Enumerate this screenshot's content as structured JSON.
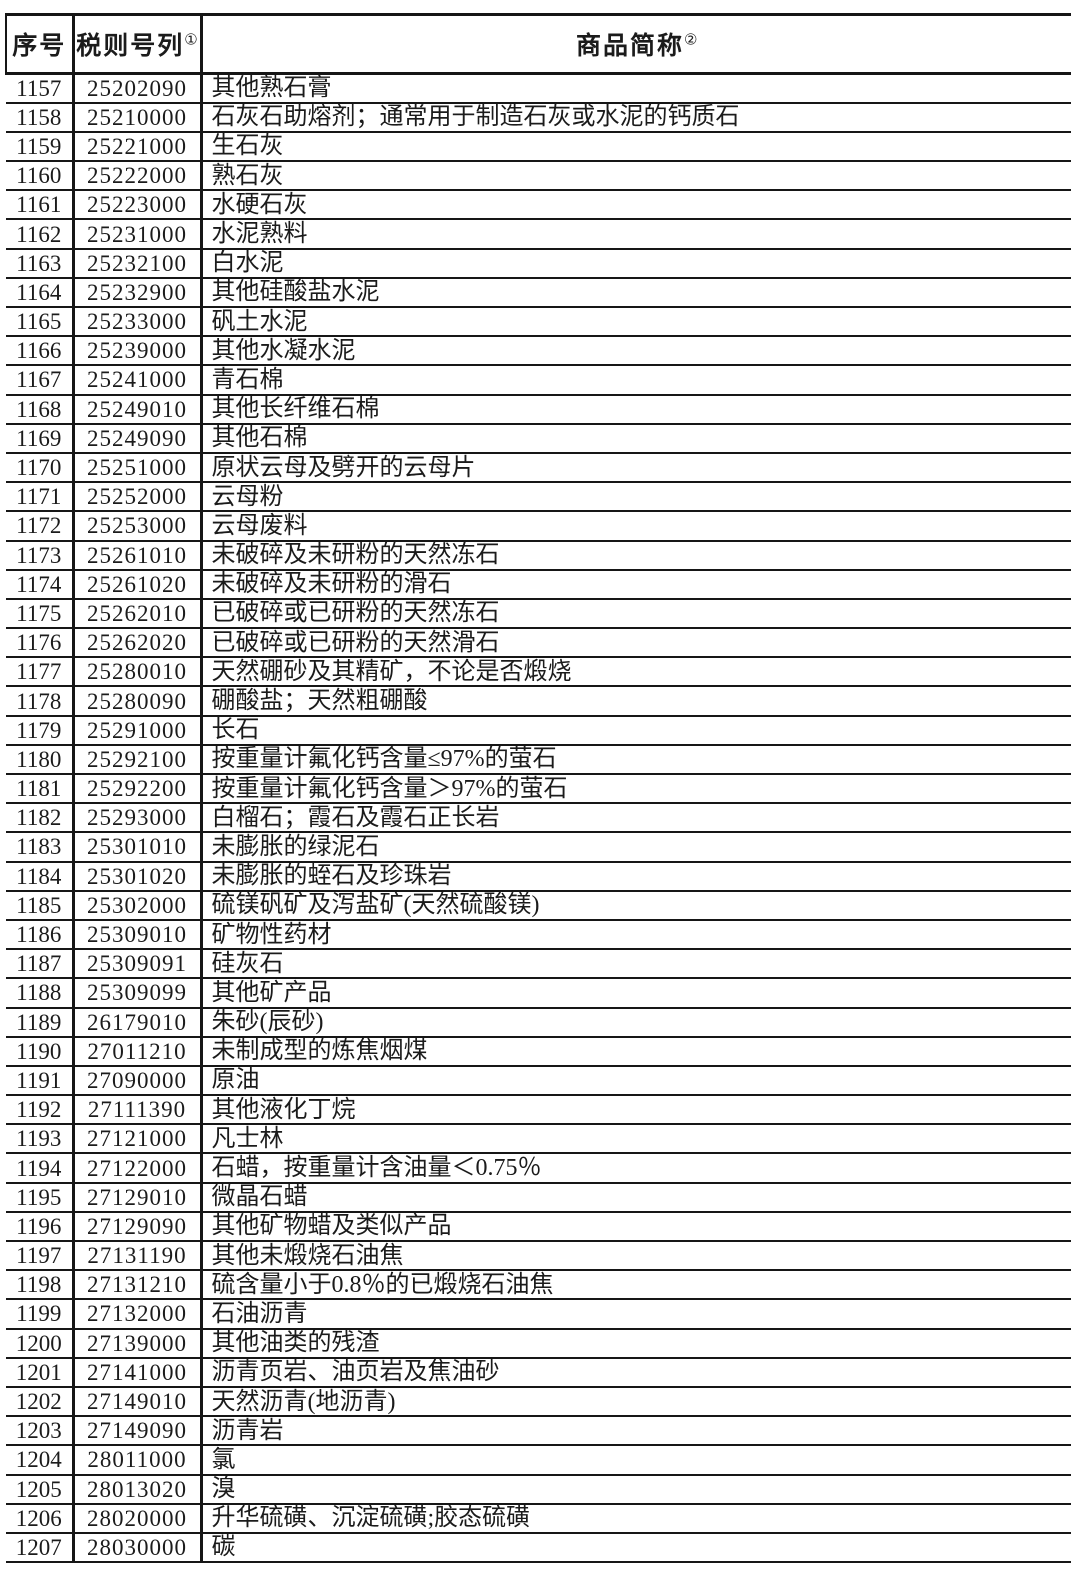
{
  "page": {
    "background": "#ffffff",
    "text_color": "#1b1b1b",
    "line_color": "#161616"
  },
  "table": {
    "headers": [
      {
        "label": "序号",
        "footnote_mark": ""
      },
      {
        "label": "税则号列",
        "footnote_mark": "①"
      },
      {
        "label": "商品简称",
        "footnote_mark": "②"
      }
    ],
    "rows": [
      {
        "seq": "1157",
        "code": "25202090",
        "name": "其他熟石膏"
      },
      {
        "seq": "1158",
        "code": "25210000",
        "name": "石灰石助熔剂；通常用于制造石灰或水泥的钙质石"
      },
      {
        "seq": "1159",
        "code": "25221000",
        "name": "生石灰"
      },
      {
        "seq": "1160",
        "code": "25222000",
        "name": "熟石灰"
      },
      {
        "seq": "1161",
        "code": "25223000",
        "name": "水硬石灰"
      },
      {
        "seq": "1162",
        "code": "25231000",
        "name": "水泥熟料"
      },
      {
        "seq": "1163",
        "code": "25232100",
        "name": "白水泥"
      },
      {
        "seq": "1164",
        "code": "25232900",
        "name": "其他硅酸盐水泥"
      },
      {
        "seq": "1165",
        "code": "25233000",
        "name": "矾土水泥"
      },
      {
        "seq": "1166",
        "code": "25239000",
        "name": "其他水凝水泥"
      },
      {
        "seq": "1167",
        "code": "25241000",
        "name": "青石棉"
      },
      {
        "seq": "1168",
        "code": "25249010",
        "name": "其他长纤维石棉"
      },
      {
        "seq": "1169",
        "code": "25249090",
        "name": "其他石棉"
      },
      {
        "seq": "1170",
        "code": "25251000",
        "name": "原状云母及劈开的云母片"
      },
      {
        "seq": "1171",
        "code": "25252000",
        "name": "云母粉"
      },
      {
        "seq": "1172",
        "code": "25253000",
        "name": "云母废料"
      },
      {
        "seq": "1173",
        "code": "25261010",
        "name": "未破碎及未研粉的天然冻石"
      },
      {
        "seq": "1174",
        "code": "25261020",
        "name": "未破碎及未研粉的滑石"
      },
      {
        "seq": "1175",
        "code": "25262010",
        "name": "已破碎或已研粉的天然冻石"
      },
      {
        "seq": "1176",
        "code": "25262020",
        "name": "已破碎或已研粉的天然滑石"
      },
      {
        "seq": "1177",
        "code": "25280010",
        "name": "天然硼砂及其精矿，不论是否煅烧"
      },
      {
        "seq": "1178",
        "code": "25280090",
        "name": "硼酸盐；天然粗硼酸"
      },
      {
        "seq": "1179",
        "code": "25291000",
        "name": "长石"
      },
      {
        "seq": "1180",
        "code": "25292100",
        "name": "按重量计氟化钙含量≤97%的萤石"
      },
      {
        "seq": "1181",
        "code": "25292200",
        "name": "按重量计氟化钙含量＞97%的萤石"
      },
      {
        "seq": "1182",
        "code": "25293000",
        "name": "白榴石；霞石及霞石正长岩"
      },
      {
        "seq": "1183",
        "code": "25301010",
        "name": "未膨胀的绿泥石"
      },
      {
        "seq": "1184",
        "code": "25301020",
        "name": "未膨胀的蛭石及珍珠岩"
      },
      {
        "seq": "1185",
        "code": "25302000",
        "name": "硫镁矾矿及泻盐矿(天然硫酸镁)"
      },
      {
        "seq": "1186",
        "code": "25309010",
        "name": "矿物性药材"
      },
      {
        "seq": "1187",
        "code": "25309091",
        "name": "硅灰石"
      },
      {
        "seq": "1188",
        "code": "25309099",
        "name": "其他矿产品"
      },
      {
        "seq": "1189",
        "code": "26179010",
        "name": "朱砂(辰砂)"
      },
      {
        "seq": "1190",
        "code": "27011210",
        "name": "未制成型的炼焦烟煤"
      },
      {
        "seq": "1191",
        "code": "27090000",
        "name": "原油"
      },
      {
        "seq": "1192",
        "code": "27111390",
        "name": "其他液化丁烷"
      },
      {
        "seq": "1193",
        "code": "27121000",
        "name": "凡士林"
      },
      {
        "seq": "1194",
        "code": "27122000",
        "name": "石蜡，按重量计含油量＜0.75％"
      },
      {
        "seq": "1195",
        "code": "27129010",
        "name": "微晶石蜡"
      },
      {
        "seq": "1196",
        "code": "27129090",
        "name": "其他矿物蜡及类似产品"
      },
      {
        "seq": "1197",
        "code": "27131190",
        "name": "其他未煅烧石油焦"
      },
      {
        "seq": "1198",
        "code": "27131210",
        "name": "硫含量小于0.8％的已煅烧石油焦"
      },
      {
        "seq": "1199",
        "code": "27132000",
        "name": "石油沥青"
      },
      {
        "seq": "1200",
        "code": "27139000",
        "name": "其他油类的残渣"
      },
      {
        "seq": "1201",
        "code": "27141000",
        "name": "沥青页岩、油页岩及焦油砂"
      },
      {
        "seq": "1202",
        "code": "27149010",
        "name": "天然沥青(地沥青)"
      },
      {
        "seq": "1203",
        "code": "27149090",
        "name": "沥青岩"
      },
      {
        "seq": "1204",
        "code": "28011000",
        "name": "氯"
      },
      {
        "seq": "1205",
        "code": "28013020",
        "name": "溴"
      },
      {
        "seq": "1206",
        "code": "28020000",
        "name": "升华硫磺、沉淀硫磺;胶态硫磺"
      },
      {
        "seq": "1207",
        "code": "28030000",
        "name": "碳"
      }
    ]
  }
}
